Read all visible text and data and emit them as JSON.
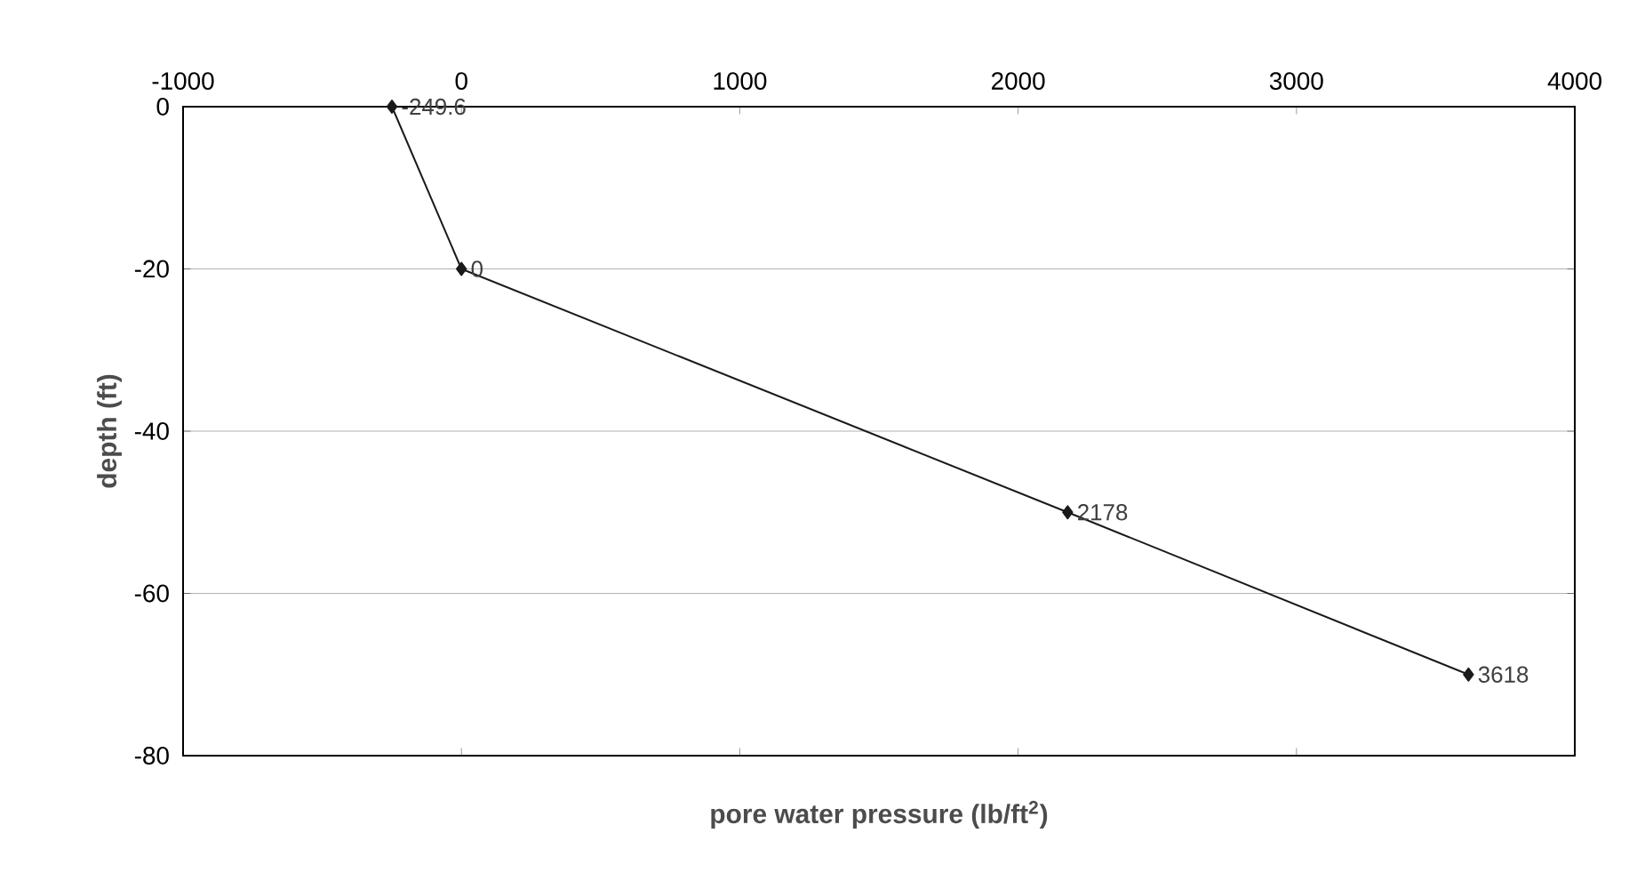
{
  "chart_data": {
    "type": "line",
    "xlabel": "pore water pressure (lb/ft$^{2}$)",
    "ylabel": "depth (ft)",
    "xlim": [
      -1000,
      4000
    ],
    "xticks": [
      -1000,
      0,
      1000,
      2000,
      3000,
      4000
    ],
    "ylim": [
      -80,
      0
    ],
    "yticks": [
      -80,
      -60,
      -40,
      -20,
      0
    ],
    "grid": "y",
    "marker": "diamond",
    "line_style": "solid",
    "series": [
      {
        "color": "#1a1a1a",
        "x": [
          -249.6,
          0,
          2178,
          3618
        ],
        "values": [
          0,
          -20,
          -50,
          -70
        ]
      }
    ],
    "annotations": [
      {
        "text": "-249.6",
        "x": -249.6,
        "y": 0
      },
      {
        "text": "0",
        "x": 0,
        "y": -20
      },
      {
        "text": "2178",
        "x": 2178,
        "y": -50
      },
      {
        "text": "3618",
        "x": 3618,
        "y": -70
      }
    ]
  }
}
